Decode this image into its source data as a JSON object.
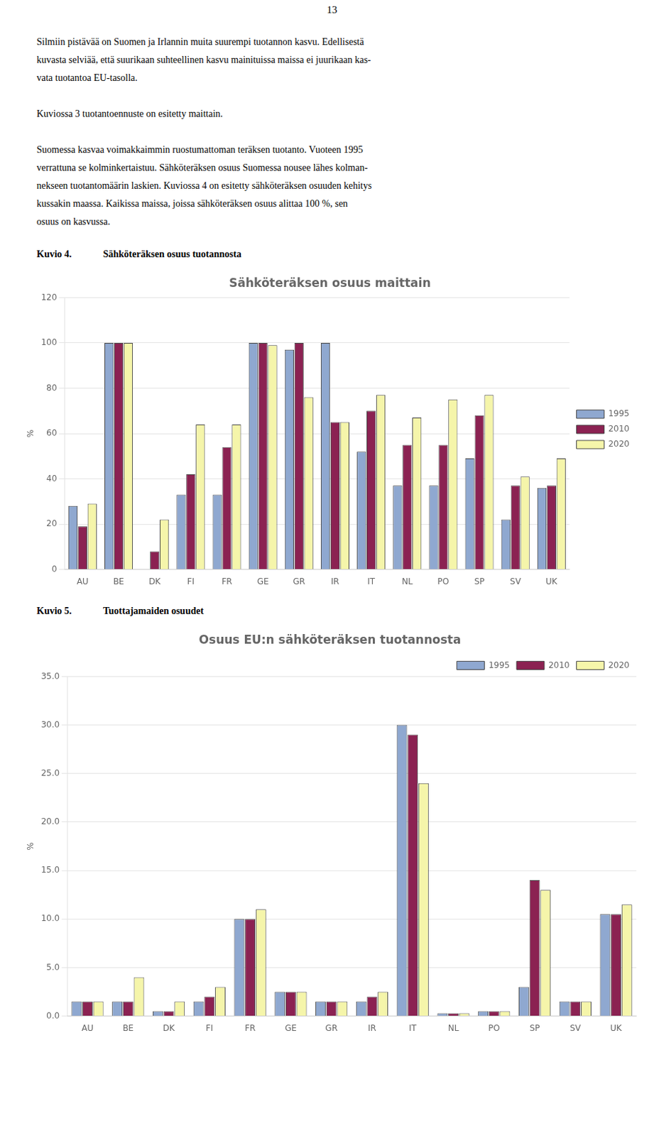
{
  "page_number": "13",
  "text_paragraphs": [
    [
      "Silmiin pistävää on Suomen ja Irlannin muita suurempi tuotannon kasvu. Edellisestä",
      "kuvasta selviää, että suurikaan suhteellinen kasvu mainituissa maissa ei juurikaan kas-",
      "vata tuotantoa EU-tasolla."
    ],
    [
      "Kuviossa 3 tuotantoennuste on esitetty maittain."
    ],
    [
      "Suomessa kasvaa voimakkaimmin ruostumattoman teräksen tuotanto. Vuoteen 1995",
      "verrattuna se kolminkertaistuu. Sähköteräksen osuus Suomessa nousee lähes kolman-",
      "nekseen tuotantomäärin laskien. Kuviossa 4 on esitetty sähköteräksen osuuden kehitys",
      "kussakin maassa. Kaikissa maissa, joissa sähköteräksen osuus alittaa 100 %, sen",
      "osuus on kasvussa."
    ]
  ],
  "chart_data": [
    {
      "type": "bar",
      "annotations": [
        "Kuvio 4.",
        "Sähköteräksen osuus tuotannosta"
      ],
      "title": "Sähköteräksen osuus maittain",
      "ylabel": "%",
      "categories": [
        "AU",
        "BE",
        "DK",
        "FI",
        "FR",
        "GE",
        "GR",
        "IR",
        "IT",
        "NL",
        "PO",
        "SP",
        "SV",
        "UK"
      ],
      "series": [
        {
          "name": "1995",
          "color": "#8FA8D0",
          "values": [
            28,
            100,
            0,
            33,
            33,
            100,
            97,
            100,
            52,
            37,
            37,
            49,
            22,
            36
          ]
        },
        {
          "name": "2010",
          "color": "#8B2252",
          "values": [
            19,
            100,
            8,
            42,
            54,
            100,
            100,
            65,
            70,
            55,
            55,
            68,
            37,
            37
          ]
        },
        {
          "name": "2020",
          "color": "#F5F5AA",
          "values": [
            29,
            100,
            22,
            64,
            64,
            99,
            76,
            65,
            77,
            67,
            75,
            77,
            41,
            49
          ]
        }
      ],
      "ylim": [
        0,
        120
      ],
      "yticks": [
        0,
        20,
        40,
        60,
        80,
        100,
        120
      ],
      "grid": "y",
      "legend": "right"
    },
    {
      "type": "bar",
      "annotations": [
        "Kuvio 5.",
        "Tuottajamaiden osuudet"
      ],
      "title": "Osuus EU:n sähköteräksen tuotannosta",
      "ylabel": "%",
      "categories": [
        "AU",
        "BE",
        "DK",
        "FI",
        "FR",
        "GE",
        "GR",
        "IR",
        "IT",
        "NL",
        "PO",
        "SP",
        "SV",
        "UK"
      ],
      "series": [
        {
          "name": "1995",
          "color": "#8FA8D0",
          "values": [
            1.5,
            1.5,
            0.5,
            1.5,
            10.0,
            2.5,
            1.5,
            1.5,
            30.0,
            0.3,
            0.5,
            3.0,
            1.5,
            10.5
          ]
        },
        {
          "name": "2010",
          "color": "#8B2252",
          "values": [
            1.5,
            1.5,
            0.5,
            2.0,
            10.0,
            2.5,
            1.5,
            2.0,
            29.0,
            0.3,
            0.5,
            14.0,
            1.5,
            10.5
          ]
        },
        {
          "name": "2020",
          "color": "#F5F5AA",
          "values": [
            1.5,
            4.0,
            1.5,
            3.0,
            11.0,
            2.5,
            1.5,
            2.5,
            24.0,
            0.3,
            0.5,
            13.0,
            1.5,
            11.5
          ]
        }
      ],
      "ylim": [
        0,
        35
      ],
      "yticks": [
        {
          "value": 0,
          "label": "0.0"
        },
        {
          "value": 5,
          "label": "5.0"
        },
        {
          "value": 10,
          "label": "10.0"
        },
        {
          "value": 15,
          "label": "15.0"
        },
        {
          "value": 20,
          "label": "20.0"
        },
        {
          "value": 25,
          "label": "25.0"
        },
        {
          "value": 30,
          "label": "30.0"
        },
        {
          "value": 35,
          "label": "35.0"
        }
      ],
      "grid": "y",
      "legend": "upper right"
    }
  ]
}
